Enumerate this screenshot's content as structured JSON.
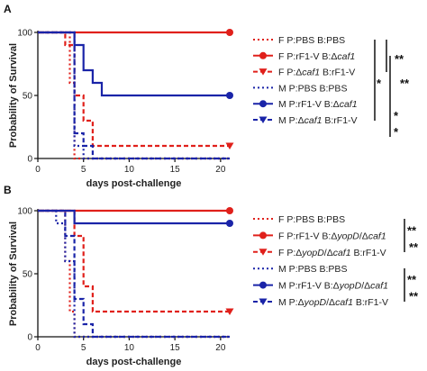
{
  "chart_data": [
    {
      "panel": "A",
      "type": "line",
      "xlabel": "days post-challenge",
      "ylabel": "Probability of Survival",
      "xlim": [
        0,
        21
      ],
      "ylim": [
        0,
        100
      ],
      "xticks": [
        0,
        5,
        10,
        15,
        20
      ],
      "yticks": [
        0,
        50,
        100
      ],
      "series": [
        {
          "name": "F P:PBS B:PBS",
          "parts": [
            {
              "t": "F P:PBS B:PBS"
            }
          ],
          "color": "#e0201b",
          "dash": true,
          "marker": "dot",
          "x": [
            0,
            3.5,
            3.5,
            4,
            4,
            21
          ],
          "y": [
            100,
            100,
            60,
            60,
            0,
            0
          ]
        },
        {
          "name": "F P:rF1-V B:Δcaf1",
          "parts": [
            {
              "t": "F P:rF1-V B:Δ"
            },
            {
              "t": "caf1",
              "i": true
            }
          ],
          "color": "#e0201b",
          "dash": false,
          "marker": "circle",
          "x": [
            0,
            21
          ],
          "y": [
            100,
            100
          ]
        },
        {
          "name": "F P:Δcaf1 B:rF1-V",
          "parts": [
            {
              "t": "F P:Δ"
            },
            {
              "t": "caf1",
              "i": true
            },
            {
              "t": " B:rF1-V"
            }
          ],
          "color": "#e0201b",
          "dash": true,
          "marker": "triangle",
          "x": [
            0,
            3,
            3,
            4,
            4,
            5,
            5,
            6,
            6,
            21
          ],
          "y": [
            100,
            100,
            90,
            90,
            50,
            50,
            30,
            30,
            10,
            10
          ]
        },
        {
          "name": "M P:PBS B:PBS",
          "parts": [
            {
              "t": "M P:PBS B:PBS"
            }
          ],
          "color": "#1a24a8",
          "dash": true,
          "marker": "dot",
          "x": [
            0,
            4,
            4,
            5,
            5,
            21
          ],
          "y": [
            100,
            100,
            10,
            10,
            0,
            0
          ]
        },
        {
          "name": "M P:rF1-V B:Δcaf1",
          "parts": [
            {
              "t": "M P:rF1-V B:Δ"
            },
            {
              "t": "caf1",
              "i": true
            }
          ],
          "color": "#1a24a8",
          "dash": false,
          "marker": "circle",
          "x": [
            0,
            4,
            4,
            5,
            5,
            6,
            6,
            7,
            7,
            21
          ],
          "y": [
            100,
            100,
            90,
            90,
            70,
            70,
            60,
            60,
            50,
            50
          ]
        },
        {
          "name": "M P:Δcaf1 B:rF1-V",
          "parts": [
            {
              "t": "M P:Δ"
            },
            {
              "t": "caf1",
              "i": true
            },
            {
              "t": " B:rF1-V"
            }
          ],
          "color": "#1a24a8",
          "dash": true,
          "marker": "triangle",
          "x": [
            0,
            4,
            4,
            5,
            5,
            6,
            6,
            21
          ],
          "y": [
            100,
            100,
            20,
            20,
            10,
            10,
            0,
            0
          ]
        }
      ],
      "significance": [
        {
          "label": "**",
          "from": 0,
          "to": 1
        },
        {
          "label": "**",
          "from": 1,
          "to": 2
        },
        {
          "label": "*",
          "from": 0,
          "to": 4
        },
        {
          "label": "*",
          "from": 3,
          "to": 4
        },
        {
          "label": "*",
          "from": 4,
          "to": 5
        }
      ]
    },
    {
      "panel": "B",
      "type": "line",
      "xlabel": "days post-challenge",
      "ylabel": "Probability of Survival",
      "xlim": [
        0,
        21
      ],
      "ylim": [
        0,
        100
      ],
      "xticks": [
        0,
        5,
        10,
        15,
        20
      ],
      "yticks": [
        0,
        50,
        100
      ],
      "series": [
        {
          "name": "F P:PBS B:PBS",
          "parts": [
            {
              "t": "F P:PBS B:PBS"
            }
          ],
          "color": "#e0201b",
          "dash": true,
          "marker": "dot",
          "x": [
            0,
            3,
            3,
            3.5,
            3.5,
            4,
            4,
            21
          ],
          "y": [
            100,
            100,
            60,
            60,
            20,
            20,
            0,
            0
          ]
        },
        {
          "name": "F P:rF1-V B:ΔyopD/Δcaf1",
          "parts": [
            {
              "t": "F P:rF1-V B:Δ"
            },
            {
              "t": "yopD",
              "i": true
            },
            {
              "t": "/Δ"
            },
            {
              "t": "caf1",
              "i": true
            }
          ],
          "color": "#e0201b",
          "dash": false,
          "marker": "circle",
          "x": [
            0,
            21
          ],
          "y": [
            100,
            100
          ]
        },
        {
          "name": "F P:ΔyopD/Δcaf1 B:rF1-V",
          "parts": [
            {
              "t": "F P:Δ"
            },
            {
              "t": "yopD",
              "i": true
            },
            {
              "t": "/Δ"
            },
            {
              "t": "caf1",
              "i": true
            },
            {
              "t": " B:rF1-V"
            }
          ],
          "color": "#e0201b",
          "dash": true,
          "marker": "triangle",
          "x": [
            0,
            4,
            4,
            5,
            5,
            6,
            6,
            21
          ],
          "y": [
            100,
            100,
            80,
            80,
            40,
            40,
            20,
            20
          ]
        },
        {
          "name": "M P:PBS B:PBS",
          "parts": [
            {
              "t": "M P:PBS B:PBS"
            }
          ],
          "color": "#1a24a8",
          "dash": true,
          "marker": "dot",
          "x": [
            0,
            2,
            2,
            3,
            3,
            4,
            4,
            21
          ],
          "y": [
            100,
            100,
            90,
            90,
            60,
            60,
            0,
            0
          ]
        },
        {
          "name": "M P:rF1-V B:ΔyopD/Δcaf1",
          "parts": [
            {
              "t": "M P:rF1-V B:Δ"
            },
            {
              "t": "yopD",
              "i": true
            },
            {
              "t": "/Δ"
            },
            {
              "t": "caf1",
              "i": true
            }
          ],
          "color": "#1a24a8",
          "dash": false,
          "marker": "circle",
          "x": [
            0,
            4,
            4,
            21
          ],
          "y": [
            100,
            100,
            90,
            90
          ]
        },
        {
          "name": "M P:ΔyopD/Δcaf1 B:rF1-V",
          "parts": [
            {
              "t": "M P:Δ"
            },
            {
              "t": "yopD",
              "i": true
            },
            {
              "t": "/Δ"
            },
            {
              "t": "caf1",
              "i": true
            },
            {
              "t": " B:rF1-V"
            }
          ],
          "color": "#1a24a8",
          "dash": true,
          "marker": "triangle",
          "x": [
            0,
            3,
            3,
            4,
            4,
            5,
            5,
            6,
            6,
            21
          ],
          "y": [
            100,
            100,
            80,
            80,
            30,
            30,
            10,
            10,
            0,
            0
          ]
        }
      ],
      "significance": [
        {
          "label": "**",
          "from": 0,
          "to": 1
        },
        {
          "label": "**",
          "from": 1,
          "to": 2
        },
        {
          "label": "**",
          "from": 3,
          "to": 4
        },
        {
          "label": "**",
          "from": 4,
          "to": 5
        }
      ]
    }
  ]
}
